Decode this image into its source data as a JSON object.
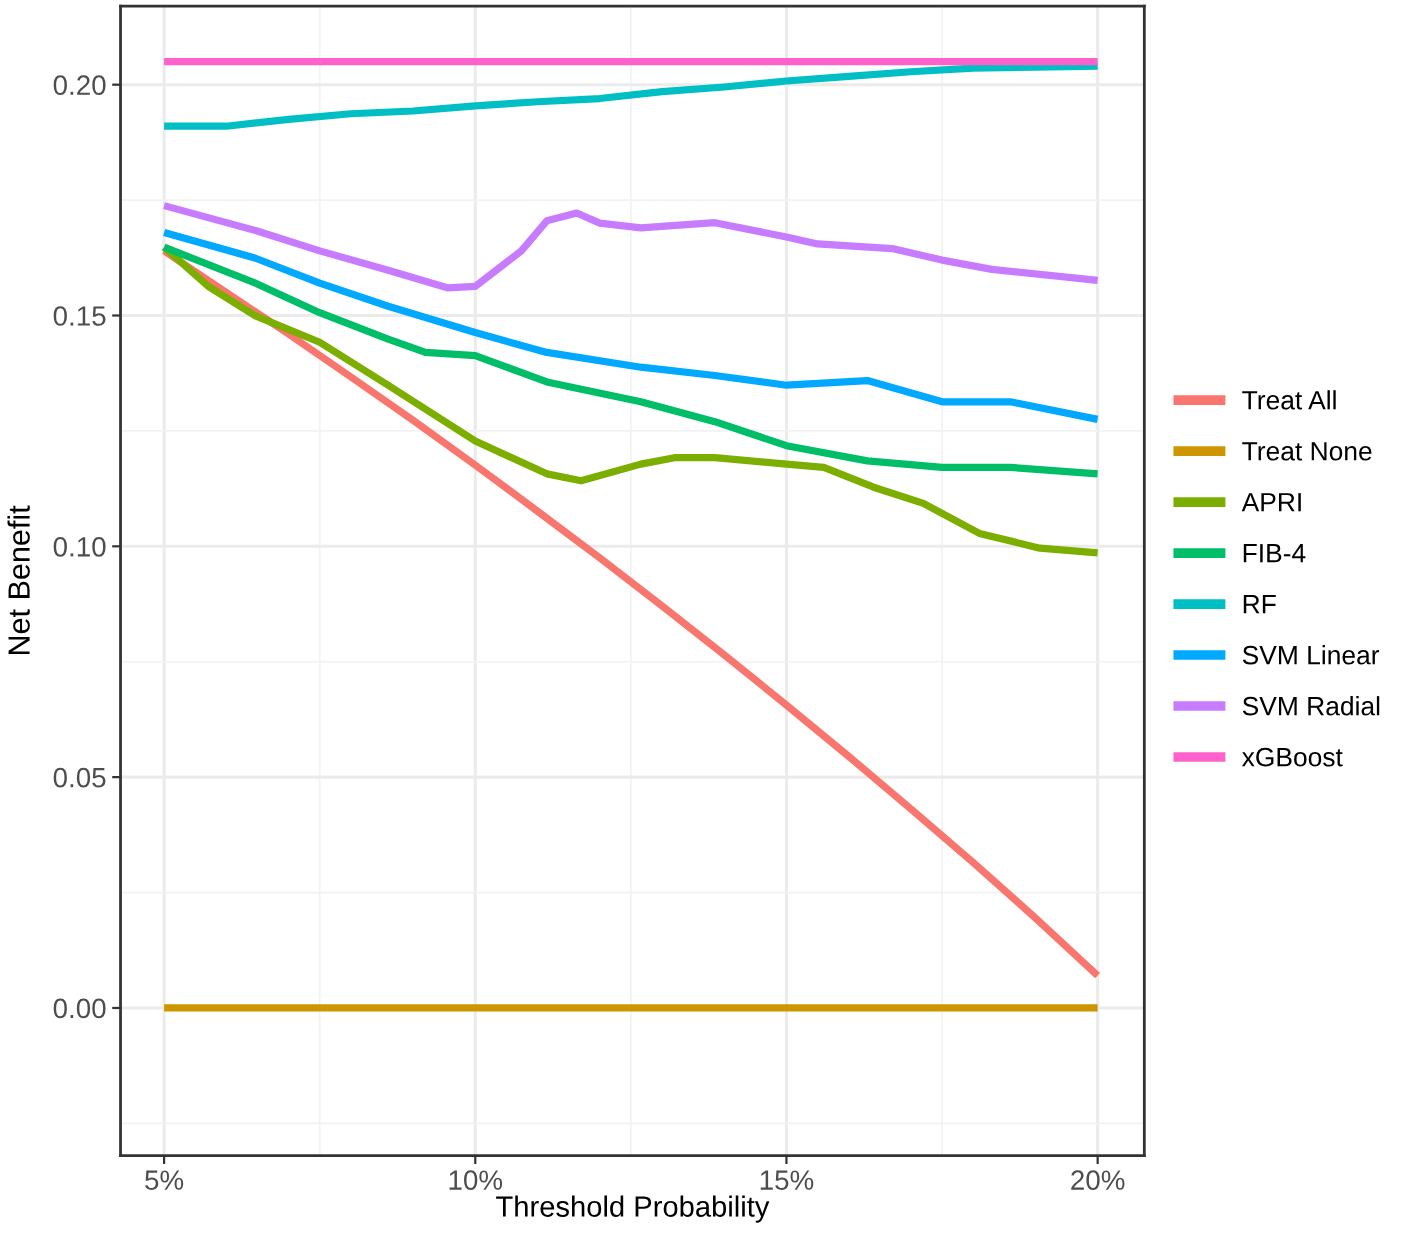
{
  "chart_data": {
    "type": "line",
    "xlabel": "Threshold Probability",
    "ylabel": "Net Benefit",
    "xlim": [
      4.3,
      20.75
    ],
    "ylim": [
      -0.032,
      0.217
    ],
    "xticks": [
      {
        "value": 5,
        "label": "5%"
      },
      {
        "value": 10,
        "label": "10%"
      },
      {
        "value": 15,
        "label": "15%"
      },
      {
        "value": 20,
        "label": "20%"
      }
    ],
    "yticks": [
      {
        "value": 0,
        "label": "0.00"
      },
      {
        "value": 0.05,
        "label": "0.05"
      },
      {
        "value": 0.1,
        "label": "0.10"
      },
      {
        "value": 0.15,
        "label": "0.15"
      },
      {
        "value": 0.2,
        "label": "0.20"
      }
    ],
    "grid": true,
    "legend": "right",
    "marker": "none",
    "line_style": "solid",
    "series": [
      {
        "name": "Treat All",
        "color": "#f8766d",
        "x": [
          5,
          6,
          7,
          8,
          9,
          10,
          11,
          12,
          13,
          14,
          15,
          16,
          17,
          18,
          19,
          20
        ],
        "values": [
          0.164,
          0.155,
          0.146,
          0.1367,
          0.1273,
          0.1176,
          0.1076,
          0.0975,
          0.0871,
          0.0765,
          0.0656,
          0.0545,
          0.0431,
          0.0315,
          0.0195,
          0.007
        ]
      },
      {
        "name": "Treat None",
        "color": "#cd9600",
        "x": [
          5,
          20
        ],
        "values": [
          0,
          0
        ]
      },
      {
        "name": "APRI",
        "color": "#7cae00",
        "x": [
          5,
          5.71,
          6.47,
          7.5,
          8.6,
          10,
          11.15,
          11.7,
          12.66,
          13.2,
          13.85,
          15,
          15.6,
          16.4,
          17.2,
          18.1,
          19.07,
          20
        ],
        "values": [
          0.1648,
          0.1563,
          0.1499,
          0.1442,
          0.1349,
          0.1228,
          0.1157,
          0.1142,
          0.1178,
          0.1192,
          0.1192,
          0.1178,
          0.1171,
          0.1128,
          0.1093,
          0.1028,
          0.0996,
          0.0986
        ]
      },
      {
        "name": "FIB-4",
        "color": "#00be67",
        "x": [
          5,
          6.47,
          7.5,
          8.6,
          9.2,
          10,
          11.15,
          12.66,
          13.85,
          15,
          16.3,
          17.5,
          18.6,
          20
        ],
        "values": [
          0.1648,
          0.157,
          0.1506,
          0.1449,
          0.142,
          0.1413,
          0.1356,
          0.1313,
          0.127,
          0.1218,
          0.1185,
          0.1171,
          0.1171,
          0.1157
        ]
      },
      {
        "name": "RF",
        "color": "#00bfc4",
        "x": [
          5,
          6,
          7,
          8,
          9,
          10,
          11,
          12,
          13,
          14,
          15,
          16,
          17,
          18,
          19,
          20
        ],
        "values": [
          0.191,
          0.191,
          0.1925,
          0.1937,
          0.1943,
          0.1954,
          0.1963,
          0.197,
          0.1985,
          0.1995,
          0.2008,
          0.2018,
          0.2028,
          0.2036,
          0.2038,
          0.204
        ]
      },
      {
        "name": "SVM Linear",
        "color": "#00a9ff",
        "x": [
          5,
          6.47,
          7.5,
          8.6,
          10,
          11.15,
          12.66,
          13.85,
          15,
          16.3,
          17.5,
          18.6,
          20
        ],
        "values": [
          0.168,
          0.1624,
          0.157,
          0.152,
          0.1463,
          0.142,
          0.1388,
          0.137,
          0.1349,
          0.1359,
          0.1313,
          0.1313,
          0.1275
        ]
      },
      {
        "name": "SVM Radial",
        "color": "#c77cff",
        "x": [
          5,
          6.47,
          7.5,
          8.6,
          9.55,
          10,
          10.74,
          11.15,
          11.63,
          12,
          12.66,
          13.85,
          15,
          15.5,
          16.7,
          17.5,
          18.3,
          20
        ],
        "values": [
          0.1738,
          0.1684,
          0.164,
          0.1598,
          0.156,
          0.1563,
          0.164,
          0.1705,
          0.1722,
          0.17,
          0.169,
          0.1701,
          0.167,
          0.1655,
          0.1645,
          0.162,
          0.16,
          0.1576
        ]
      },
      {
        "name": "xGBoost",
        "color": "#ff61cc",
        "x": [
          5,
          20
        ],
        "values": [
          0.205,
          0.205
        ]
      }
    ]
  }
}
